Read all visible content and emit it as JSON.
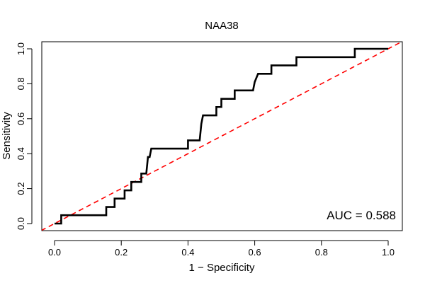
{
  "chart_data": {
    "type": "line",
    "title": "NAA38",
    "xlabel": "1 − Specificity",
    "ylabel": "Sensitivity",
    "xlim": [
      0,
      1
    ],
    "ylim": [
      0,
      1
    ],
    "x_ticks": [
      "0.0",
      "0.2",
      "0.4",
      "0.6",
      "0.8",
      "1.0"
    ],
    "y_ticks": [
      "0.0",
      "0.2",
      "0.4",
      "0.6",
      "0.8",
      "1.0"
    ],
    "annotation": "AUC = 0.588",
    "grid": false,
    "series": [
      {
        "name": "ROC",
        "color": "#000000",
        "x": [
          0,
          0.02,
          0.02,
          0.155,
          0.155,
          0.18,
          0.18,
          0.21,
          0.21,
          0.23,
          0.23,
          0.26,
          0.26,
          0.275,
          0.28,
          0.285,
          0.29,
          0.4,
          0.4,
          0.435,
          0.44,
          0.445,
          0.485,
          0.485,
          0.5,
          0.5,
          0.54,
          0.54,
          0.595,
          0.6,
          0.61,
          0.65,
          0.65,
          0.725,
          0.725,
          0.9,
          0.9,
          1
        ],
        "y": [
          0,
          0,
          0.048,
          0.048,
          0.095,
          0.095,
          0.143,
          0.143,
          0.19,
          0.19,
          0.238,
          0.238,
          0.286,
          0.286,
          0.381,
          0.381,
          0.429,
          0.429,
          0.476,
          0.476,
          0.571,
          0.619,
          0.619,
          0.667,
          0.667,
          0.714,
          0.714,
          0.762,
          0.762,
          0.81,
          0.857,
          0.857,
          0.905,
          0.905,
          0.952,
          0.952,
          1,
          1
        ]
      },
      {
        "name": "Reference",
        "color": "#ff0000",
        "dashed": true,
        "x": [
          -0.04,
          1.04
        ],
        "y": [
          -0.04,
          1.04
        ]
      }
    ]
  }
}
